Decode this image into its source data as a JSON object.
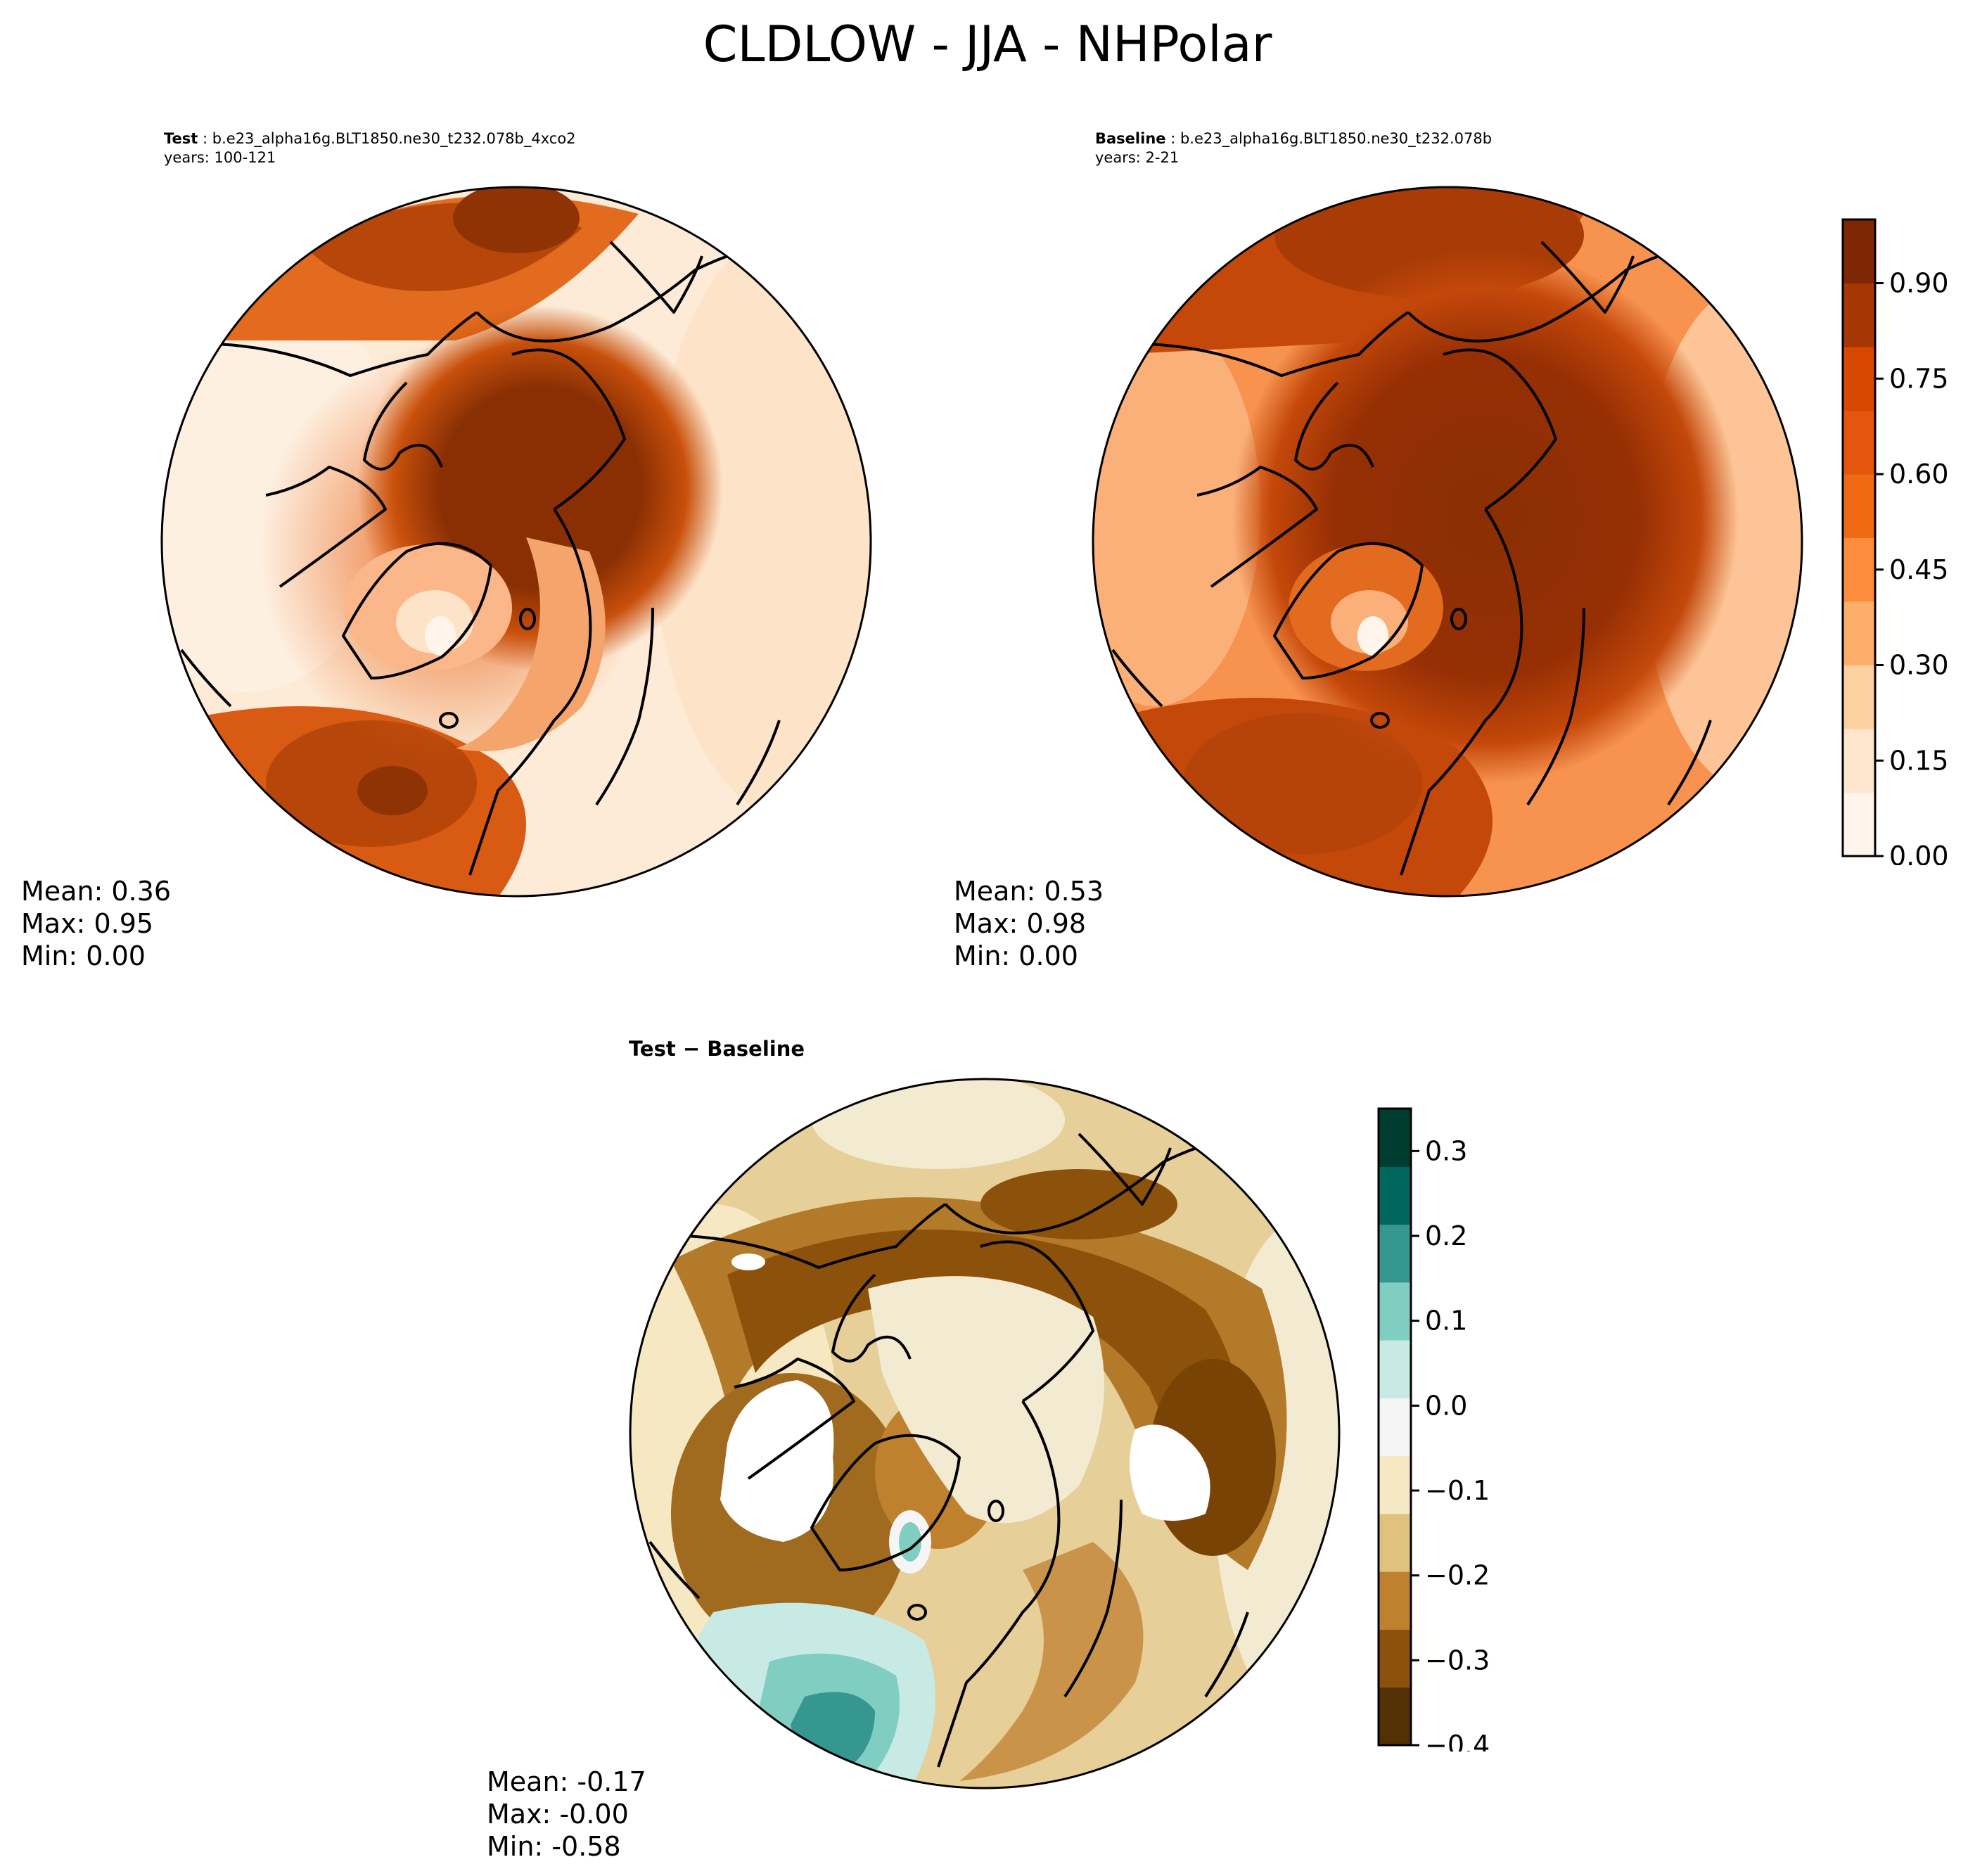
{
  "title": "CLDLOW - JJA - NHPolar",
  "test": {
    "label": "Test",
    "case": "b.e23_alpha16g.BLT1850.ne30_t232.078b_4xco2",
    "years": "years: 100-121",
    "stats": {
      "mean": "Mean:  0.36",
      "max": "Max:  0.95",
      "min": "Min:  0.00"
    }
  },
  "baseline": {
    "label": "Baseline",
    "case": "b.e23_alpha16g.BLT1850.ne30_t232.078b",
    "years": "years: 2-21",
    "stats": {
      "mean": "Mean:  0.53",
      "max": "Max:  0.98",
      "min": "Min:  0.00"
    }
  },
  "difference": {
    "title": "Test − Baseline",
    "stats": {
      "mean": "Mean: -0.17",
      "max": "Max: -0.00",
      "min": "Min: -0.58"
    }
  },
  "colorbar_abs": {
    "colormap": "Oranges",
    "min": 0.0,
    "max": 1.0,
    "colors": [
      "#fff5eb",
      "#fee6ce",
      "#fdd0a2",
      "#fdae6b",
      "#fd8d3c",
      "#f16913",
      "#e6550d",
      "#d94801",
      "#a63603",
      "#7f2704"
    ],
    "ticks": [
      0.0,
      0.15,
      0.3,
      0.45,
      0.6,
      0.75,
      0.9
    ],
    "tick_labels": [
      "0.00",
      "0.15",
      "0.30",
      "0.45",
      "0.60",
      "0.75",
      "0.90"
    ]
  },
  "colorbar_diff": {
    "colormap": "BrBG",
    "min": -0.4,
    "max": 0.35,
    "colors": [
      "#543005",
      "#8c510a",
      "#bf812d",
      "#dfc27d",
      "#f6e8c3",
      "#f5f5f5",
      "#c7eae5",
      "#80cdc1",
      "#35978f",
      "#01665e",
      "#003c30"
    ],
    "ticks": [
      -0.4,
      -0.3,
      -0.2,
      -0.1,
      0.0,
      0.1,
      0.2,
      0.3
    ],
    "tick_labels": [
      "−0.4",
      "−0.3",
      "−0.2",
      "−0.1",
      "0.0",
      "0.1",
      "0.2",
      "0.3"
    ]
  }
}
